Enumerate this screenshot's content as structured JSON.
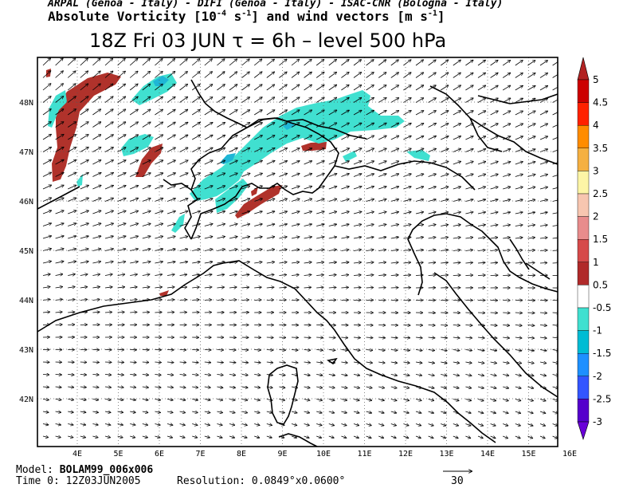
{
  "header": {
    "line1": "ARPAL (Genoa - Italy)  -  DIFI (Genoa - Italy)  -  ISAC-CNR (Bologna - Italy)",
    "line2_a": "Absolute Vorticity [10",
    "line2_exp1": "-4",
    "line2_b": " s",
    "line2_exp2": "-1",
    "line2_c": "] and wind vectors [m s",
    "line2_exp3": "-1",
    "line2_d": "]",
    "title": "18Z Fri 03 JUN   τ = 6h   –   level 500 hPa"
  },
  "axes": {
    "lon_labels": [
      "4E",
      "5E",
      "6E",
      "7E",
      "8E",
      "9E",
      "10E",
      "11E",
      "12E",
      "13E",
      "14E",
      "15E",
      "16E"
    ],
    "lat_labels": [
      "48N",
      "47N",
      "46N",
      "45N",
      "44N",
      "43N",
      "42N"
    ]
  },
  "colorbar": {
    "labels": [
      "5",
      "4.5",
      "4",
      "3.5",
      "3",
      "2.5",
      "2",
      "1.5",
      "1",
      "0.5",
      "-0.5",
      "-1",
      "-1.5",
      "-2",
      "-2.5",
      "-3"
    ],
    "colors": [
      "#b22222",
      "#cc0000",
      "#ff2200",
      "#ff8c00",
      "#f5b041",
      "#fdf5a6",
      "#f7c6b0",
      "#e88c8c",
      "#d64a4a",
      "#b02a2a",
      "#ffffff",
      "#40e0d0",
      "#00bcd4",
      "#1e90ff",
      "#3355ff",
      "#5500cc"
    ],
    "top_color": "#b22222",
    "bottom_color": "#6a00d8"
  },
  "footer": {
    "model_label": "Model:",
    "model_value": "BOLAM99_006x006",
    "time_label": "Time 0:",
    "time_value": "12Z03JUN2005",
    "res_label": "Resolution:",
    "res_value": "0.0849°x0.0600°",
    "ref_vector": "30"
  },
  "colors": {
    "frame": "#000000",
    "coast": "#000000",
    "vort_pos": "#b0322b",
    "vort_neg": "#40e0d0",
    "vort_neg_strong": "#1fb6d6"
  }
}
